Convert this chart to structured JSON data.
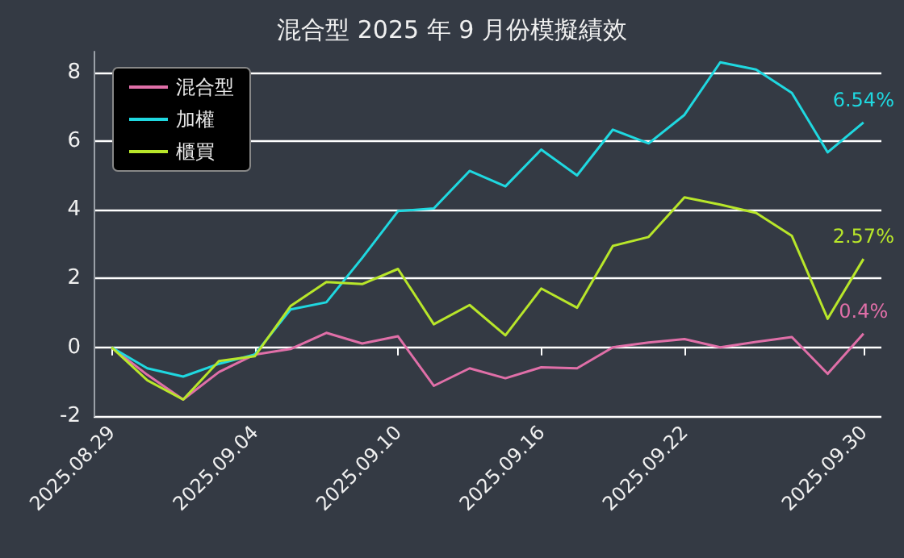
{
  "chart_data": {
    "type": "line",
    "title": "混合型 2025 年 9 月份模擬績效",
    "categories": [
      "2025.08.29",
      null,
      null,
      null,
      "2025.09.04",
      null,
      null,
      null,
      "2025.09.10",
      null,
      null,
      null,
      "2025.09.16",
      null,
      null,
      null,
      "2025.09.22",
      null,
      null,
      null,
      null,
      "2025.09.30"
    ],
    "series": [
      {
        "name": "混合型",
        "color": "#e06fa8",
        "values": [
          0,
          -0.8,
          -1.52,
          -0.72,
          -0.21,
          -0.05,
          0.42,
          0.11,
          0.32,
          -1.12,
          -0.61,
          -0.9,
          -0.58,
          -0.61,
          0,
          0.14,
          0.24,
          0,
          0.16,
          0.3,
          -0.77,
          0.4
        ],
        "value_labels": [
          null,
          null,
          null,
          null,
          null,
          null,
          null,
          null,
          null,
          null,
          null,
          null,
          null,
          null,
          null,
          null,
          null,
          null,
          null,
          null,
          null,
          "0.4%"
        ]
      },
      {
        "name": "加權",
        "color": "#1fd8e0",
        "values": [
          0,
          -0.61,
          -0.85,
          -0.48,
          -0.21,
          1.1,
          1.31,
          2.6,
          3.96,
          4.04,
          5.13,
          4.68,
          5.75,
          5.0,
          6.33,
          5.93,
          6.76,
          8.29,
          8.08,
          7.4,
          5.67,
          6.54
        ],
        "value_labels": [
          null,
          null,
          null,
          null,
          null,
          null,
          null,
          null,
          null,
          null,
          null,
          null,
          null,
          null,
          null,
          null,
          null,
          null,
          null,
          null,
          null,
          "6.54%"
        ]
      },
      {
        "name": "櫃買",
        "color": "#b8e62a",
        "values": [
          0,
          -0.96,
          -1.52,
          -0.4,
          -0.26,
          1.2,
          1.9,
          1.84,
          2.28,
          0.67,
          1.23,
          0.35,
          1.71,
          1.15,
          2.95,
          3.21,
          4.36,
          4.15,
          3.91,
          3.24,
          0.83,
          2.57
        ],
        "value_labels": [
          null,
          null,
          null,
          null,
          null,
          null,
          null,
          null,
          null,
          null,
          null,
          null,
          null,
          null,
          null,
          null,
          null,
          null,
          null,
          null,
          null,
          "2.57%"
        ]
      }
    ],
    "ylim": [
      -2,
      8.6
    ],
    "yticks": [
      -2,
      0,
      2,
      4,
      6,
      8
    ],
    "grid": "y",
    "legend": "top left",
    "marker": "none",
    "line_style": "solid"
  }
}
